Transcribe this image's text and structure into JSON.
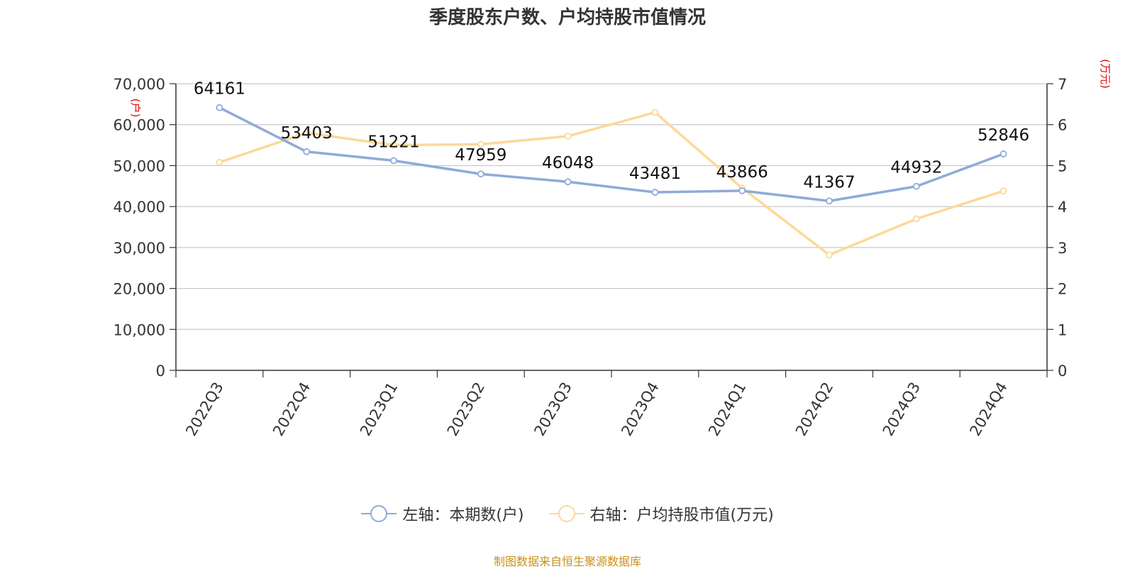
{
  "chart_data": {
    "type": "line",
    "title": "季度股东户数、户均持股市值情况",
    "categories": [
      "2022Q3",
      "2022Q4",
      "2023Q1",
      "2023Q2",
      "2023Q3",
      "2023Q4",
      "2024Q1",
      "2024Q2",
      "2024Q3",
      "2024Q4"
    ],
    "left_axis": {
      "unit_label": "(户)",
      "ylim": [
        0,
        70000
      ],
      "ticks": [
        "0",
        "10,000",
        "20,000",
        "30,000",
        "40,000",
        "50,000",
        "60,000",
        "70,000"
      ]
    },
    "right_axis": {
      "unit_label": "(万元)",
      "ylim": [
        0,
        7
      ],
      "ticks": [
        "0",
        "1",
        "2",
        "3",
        "4",
        "5",
        "6",
        "7"
      ]
    },
    "series": [
      {
        "name": "左轴：本期数(户)",
        "axis": "left",
        "color": "#8eabd8",
        "values": [
          64161,
          53403,
          51221,
          47959,
          46048,
          43481,
          43866,
          41367,
          44932,
          52846
        ],
        "labels": [
          "64161",
          "53403",
          "51221",
          "47959",
          "46048",
          "43481",
          "43866",
          "41367",
          "44932",
          "52846"
        ]
      },
      {
        "name": "右轴：户均持股市值(万元)",
        "axis": "right",
        "color": "#fcd999",
        "values": [
          5.08,
          5.8,
          5.5,
          5.52,
          5.72,
          6.3,
          4.45,
          2.82,
          3.7,
          4.38
        ]
      }
    ],
    "grid": true,
    "legend_position": "bottom"
  },
  "source": "制图数据来自恒生聚源数据库"
}
